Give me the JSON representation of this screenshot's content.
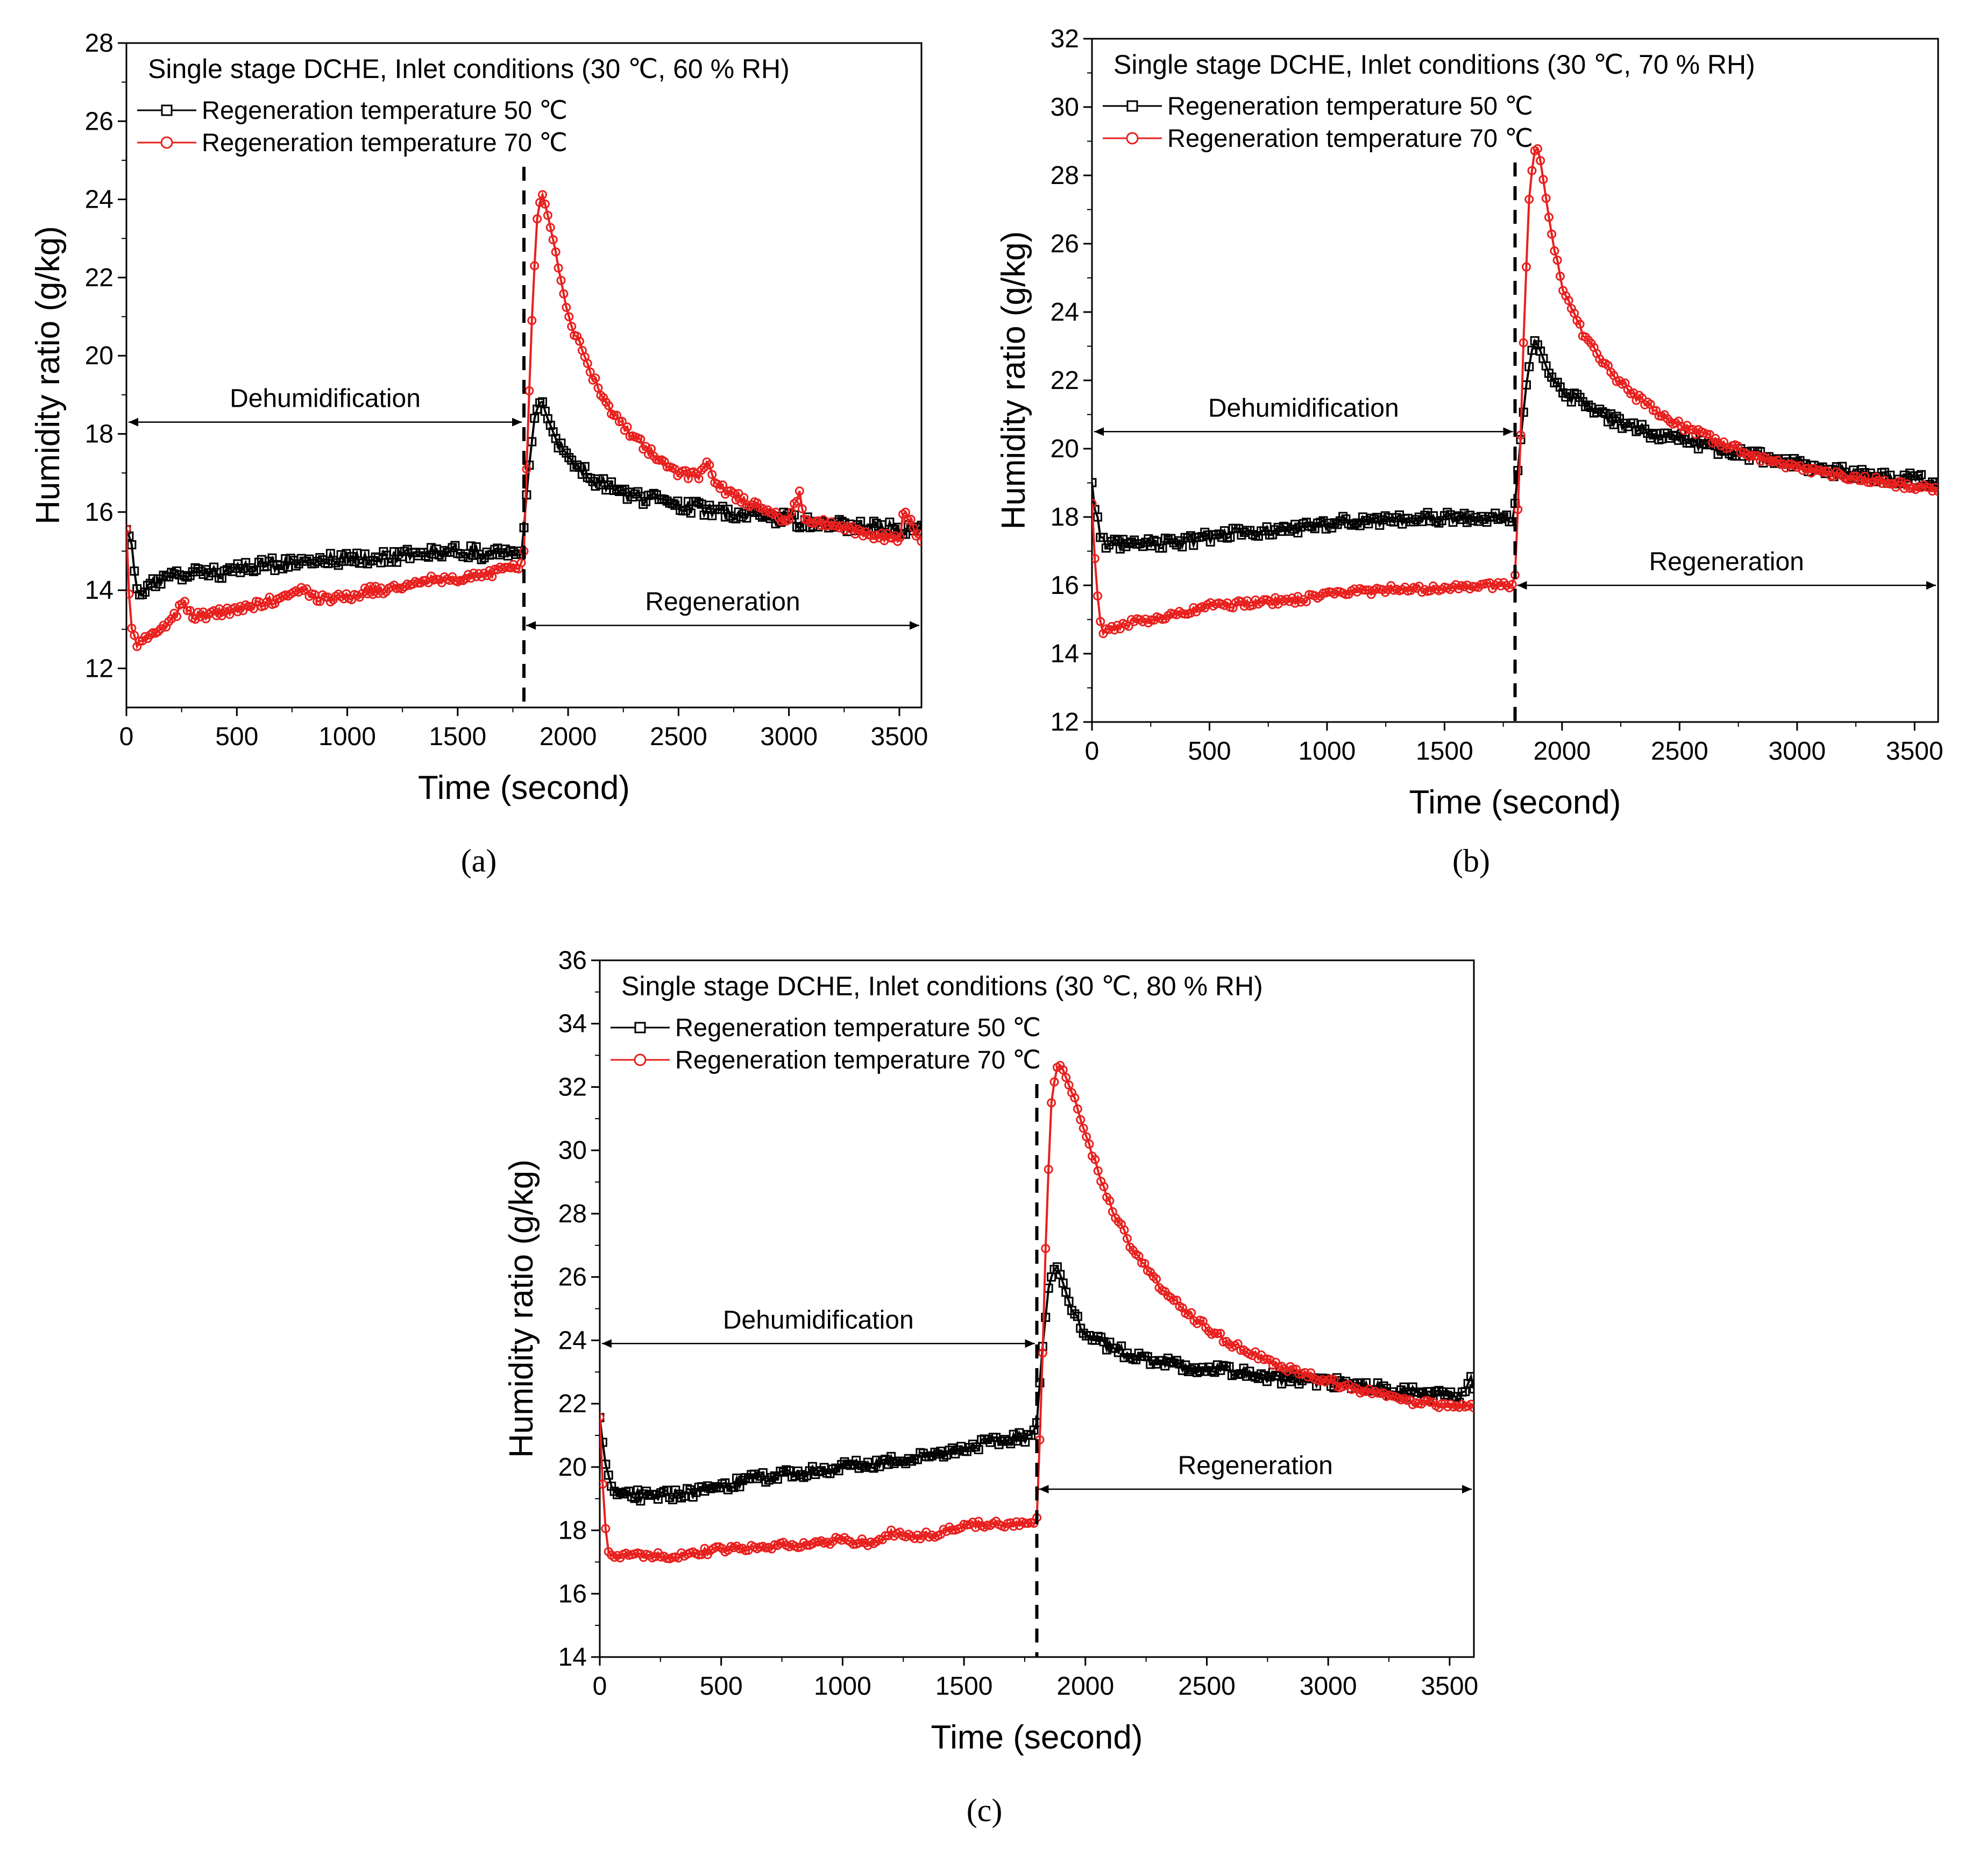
{
  "chart_data": [
    {
      "type": "line",
      "panel_label": "(a)",
      "title": "Single stage DCHE, Inlet conditions (30 ℃, 60 % RH)",
      "xlabel": "Time (second)",
      "ylabel": "Humidity ratio (g/kg)",
      "xlim": [
        0,
        3600
      ],
      "ylim": [
        11,
        28
      ],
      "xticks": [
        "0",
        "500",
        "1000",
        "1500",
        "2000",
        "2500",
        "3000",
        "3500"
      ],
      "yticks": [
        "12",
        "14",
        "16",
        "18",
        "20",
        "22",
        "24",
        "26",
        "28"
      ],
      "annotations": {
        "dehumidification": "Dehumidification",
        "regeneration": "Regeneration"
      },
      "series": [
        {
          "name": "Regeneration temperature 50 ℃",
          "color": "#000000",
          "marker": "square",
          "x": [
            0,
            20,
            40,
            60,
            100,
            200,
            300,
            500,
            700,
            900,
            1100,
            1300,
            1500,
            1700,
            1790,
            1800,
            1820,
            1850,
            1880,
            1900,
            1950,
            2000,
            2100,
            2200,
            2300,
            2400,
            2500,
            2700,
            2900,
            3100,
            3300,
            3500,
            3600
          ],
          "values": [
            15.7,
            15.2,
            14.3,
            14.0,
            14.1,
            14.3,
            14.4,
            14.5,
            14.7,
            14.8,
            14.8,
            14.9,
            15.0,
            14.9,
            15.0,
            15.6,
            17.0,
            18.5,
            18.9,
            18.5,
            17.8,
            17.3,
            16.9,
            16.6,
            16.4,
            16.3,
            16.2,
            16.0,
            15.9,
            15.7,
            15.6,
            15.6,
            15.6
          ]
        },
        {
          "name": "Regeneration temperature 70 ℃",
          "color": "#e8201e",
          "marker": "circle",
          "x": [
            0,
            15,
            30,
            50,
            100,
            200,
            260,
            300,
            500,
            700,
            800,
            850,
            1000,
            1100,
            1200,
            1300,
            1400,
            1500,
            1700,
            1790,
            1800,
            1820,
            1840,
            1860,
            1880,
            1900,
            1950,
            2000,
            2100,
            2200,
            2300,
            2400,
            2500,
            2600,
            2630,
            2660,
            2700,
            2900,
            3000,
            3050,
            3070,
            3200,
            3300,
            3400,
            3500,
            3520,
            3600
          ],
          "values": [
            15.6,
            13.4,
            12.8,
            12.6,
            12.9,
            13.2,
            13.7,
            13.3,
            13.5,
            13.8,
            14.1,
            13.8,
            13.8,
            14.0,
            14.0,
            14.2,
            14.3,
            14.3,
            14.5,
            14.6,
            15.0,
            18.5,
            21.5,
            23.5,
            24.2,
            23.8,
            22.5,
            21.0,
            19.6,
            18.5,
            17.9,
            17.4,
            17.0,
            16.9,
            17.4,
            16.8,
            16.6,
            16.0,
            15.8,
            16.5,
            15.8,
            15.7,
            15.5,
            15.4,
            15.3,
            16.1,
            15.2
          ]
        }
      ]
    },
    {
      "type": "line",
      "panel_label": "(b)",
      "title": "Single stage DCHE, Inlet conditions (30 ℃, 70 % RH)",
      "xlabel": "Time (second)",
      "ylabel": "Humidity ratio (g/kg)",
      "xlim": [
        0,
        3600
      ],
      "ylim": [
        12,
        32
      ],
      "xticks": [
        "0",
        "500",
        "1000",
        "1500",
        "2000",
        "2500",
        "3000",
        "3500"
      ],
      "yticks": [
        "12",
        "14",
        "16",
        "18",
        "20",
        "22",
        "24",
        "26",
        "28",
        "30",
        "32"
      ],
      "annotations": {
        "dehumidification": "Dehumidification",
        "regeneration": "Regeneration"
      },
      "series": [
        {
          "name": "Regeneration temperature 50 ℃",
          "color": "#000000",
          "marker": "square",
          "x": [
            0,
            20,
            40,
            60,
            100,
            300,
            500,
            700,
            900,
            1100,
            1300,
            1500,
            1700,
            1790,
            1800,
            1820,
            1850,
            1880,
            1900,
            1950,
            2000,
            2100,
            2200,
            2300,
            2500,
            2700,
            2900,
            3100,
            3300,
            3500,
            3600
          ],
          "values": [
            18.9,
            18.0,
            17.4,
            17.2,
            17.2,
            17.2,
            17.4,
            17.6,
            17.7,
            17.9,
            17.9,
            18.0,
            18.0,
            18.0,
            18.4,
            20.0,
            22.0,
            23.2,
            23.0,
            22.1,
            21.7,
            21.3,
            20.9,
            20.6,
            20.3,
            19.9,
            19.7,
            19.4,
            19.2,
            19.1,
            19.0
          ]
        },
        {
          "name": "Regeneration temperature 70 ℃",
          "color": "#e8201e",
          "marker": "circle",
          "x": [
            0,
            15,
            30,
            50,
            100,
            300,
            500,
            700,
            900,
            1100,
            1300,
            1500,
            1700,
            1790,
            1800,
            1820,
            1840,
            1860,
            1880,
            1900,
            1950,
            2000,
            2100,
            2200,
            2300,
            2400,
            2500,
            2700,
            2900,
            3100,
            3300,
            3500,
            3600
          ],
          "values": [
            18.3,
            16.5,
            15.0,
            14.6,
            14.8,
            15.1,
            15.4,
            15.5,
            15.6,
            15.8,
            15.9,
            15.9,
            16.0,
            16.0,
            16.3,
            19.5,
            24.0,
            27.3,
            28.7,
            28.8,
            26.5,
            24.7,
            23.2,
            22.3,
            21.6,
            21.1,
            20.7,
            20.1,
            19.6,
            19.3,
            19.1,
            18.9,
            18.8
          ]
        }
      ]
    },
    {
      "type": "line",
      "panel_label": "(c)",
      "title": "Single stage DCHE, Inlet conditions (30 ℃, 80 % RH)",
      "xlabel": "Time (second)",
      "ylabel": "Humidity ratio (g/kg)",
      "xlim": [
        0,
        3600
      ],
      "ylim": [
        14,
        36
      ],
      "xticks": [
        "0",
        "500",
        "1000",
        "1500",
        "2000",
        "2500",
        "3000",
        "3500"
      ],
      "yticks": [
        "14",
        "16",
        "18",
        "20",
        "22",
        "24",
        "26",
        "28",
        "30",
        "32",
        "34",
        "36"
      ],
      "annotations": {
        "dehumidification": "Dehumidification",
        "regeneration": "Regeneration"
      },
      "series": [
        {
          "name": "Regeneration temperature 50 ℃",
          "color": "#000000",
          "marker": "square",
          "x": [
            0,
            20,
            40,
            60,
            100,
            300,
            500,
            700,
            900,
            1100,
            1300,
            1500,
            1700,
            1790,
            1800,
            1820,
            1850,
            1880,
            1900,
            1950,
            2000,
            2100,
            2200,
            2400,
            2600,
            2800,
            3000,
            3200,
            3400,
            3550,
            3580,
            3600
          ],
          "values": [
            21.5,
            20.3,
            19.4,
            19.1,
            19.1,
            19.1,
            19.4,
            19.7,
            19.9,
            20.1,
            20.3,
            20.6,
            20.9,
            21.0,
            21.4,
            23.5,
            25.8,
            26.4,
            26.0,
            24.8,
            24.2,
            23.8,
            23.5,
            23.2,
            23.0,
            22.8,
            22.7,
            22.5,
            22.3,
            22.2,
            22.9,
            22.4
          ]
        },
        {
          "name": "Regeneration temperature 70 ℃",
          "color": "#e8201e",
          "marker": "circle",
          "x": [
            0,
            15,
            30,
            50,
            100,
            300,
            500,
            700,
            900,
            1000,
            1100,
            1200,
            1300,
            1400,
            1500,
            1700,
            1790,
            1800,
            1820,
            1840,
            1860,
            1880,
            1900,
            1950,
            2000,
            2100,
            2200,
            2300,
            2400,
            2500,
            2600,
            2800,
            3000,
            3200,
            3400,
            3600
          ],
          "values": [
            21.6,
            18.8,
            17.5,
            17.1,
            17.2,
            17.2,
            17.4,
            17.5,
            17.6,
            17.7,
            17.6,
            17.9,
            17.8,
            17.9,
            18.2,
            18.2,
            18.3,
            18.4,
            22.5,
            28.0,
            31.5,
            32.6,
            32.7,
            31.7,
            30.5,
            28.3,
            26.8,
            25.8,
            25.0,
            24.4,
            23.9,
            23.2,
            22.7,
            22.3,
            22.0,
            21.9
          ]
        }
      ]
    }
  ]
}
